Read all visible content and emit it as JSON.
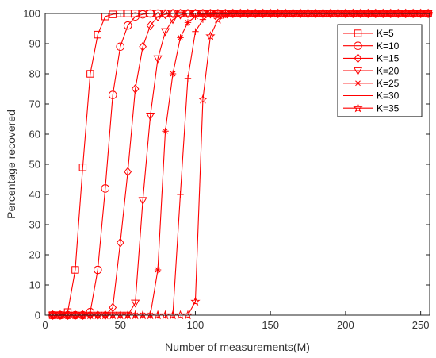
{
  "chart_data": {
    "type": "line",
    "xlabel": "Number of measurements(M)",
    "ylabel": "Percentage recovered",
    "xlim": [
      0,
      256
    ],
    "ylim": [
      0,
      100
    ],
    "xticks": [
      0,
      50,
      100,
      150,
      200,
      250
    ],
    "yticks": [
      0,
      10,
      20,
      30,
      40,
      50,
      60,
      70,
      80,
      90,
      100
    ],
    "grid": false,
    "legend_position": "top-right",
    "line_color": "#ff0000",
    "series": [
      {
        "name": "K=5",
        "marker": "square",
        "x": [
          5,
          10,
          15,
          20,
          25,
          30,
          35,
          40,
          45,
          50,
          55,
          60,
          65,
          70,
          75,
          80,
          85,
          90,
          95,
          100,
          105,
          110,
          115,
          120,
          125,
          130,
          135,
          140,
          145,
          150,
          155,
          160,
          165,
          170,
          175,
          180,
          185,
          190,
          195,
          200,
          205,
          210,
          215,
          220,
          225,
          230,
          235,
          240,
          245,
          250,
          255
        ],
        "y": [
          0,
          0,
          1,
          15,
          49,
          80,
          93,
          99,
          99.7,
          100,
          100,
          100,
          100,
          100,
          100,
          100,
          100,
          100,
          100,
          100,
          100,
          100,
          100,
          100,
          100,
          100,
          100,
          100,
          100,
          100,
          100,
          100,
          100,
          100,
          100,
          100,
          100,
          100,
          100,
          100,
          100,
          100,
          100,
          100,
          100,
          100,
          100,
          100,
          100,
          100,
          100
        ]
      },
      {
        "name": "K=10",
        "marker": "circle",
        "x": [
          5,
          10,
          15,
          20,
          25,
          30,
          35,
          40,
          45,
          50,
          55,
          60,
          65,
          70,
          75,
          80,
          85,
          90,
          95,
          100,
          105,
          110,
          115,
          120,
          125,
          130,
          135,
          140,
          145,
          150,
          155,
          160,
          165,
          170,
          175,
          180,
          185,
          190,
          195,
          200,
          205,
          210,
          215,
          220,
          225,
          230,
          235,
          240,
          245,
          250,
          255
        ],
        "y": [
          0,
          0,
          0,
          0,
          0,
          1,
          15,
          42,
          73,
          89,
          96,
          99,
          99.7,
          100,
          100,
          100,
          100,
          100,
          100,
          100,
          100,
          100,
          100,
          100,
          100,
          100,
          100,
          100,
          100,
          100,
          100,
          100,
          100,
          100,
          100,
          100,
          100,
          100,
          100,
          100,
          100,
          100,
          100,
          100,
          100,
          100,
          100,
          100,
          100,
          100,
          100
        ]
      },
      {
        "name": "K=15",
        "marker": "diamond",
        "x": [
          5,
          10,
          15,
          20,
          25,
          30,
          35,
          40,
          45,
          50,
          55,
          60,
          65,
          70,
          75,
          80,
          85,
          90,
          95,
          100,
          105,
          110,
          115,
          120,
          125,
          130,
          135,
          140,
          145,
          150,
          155,
          160,
          165,
          170,
          175,
          180,
          185,
          190,
          195,
          200,
          205,
          210,
          215,
          220,
          225,
          230,
          235,
          240,
          245,
          250,
          255
        ],
        "y": [
          0,
          0,
          0,
          0,
          0,
          0,
          0,
          0,
          2.5,
          24,
          47.5,
          75,
          89,
          96,
          99,
          99.7,
          100,
          100,
          100,
          100,
          100,
          100,
          100,
          100,
          100,
          100,
          100,
          100,
          100,
          100,
          100,
          100,
          100,
          100,
          100,
          100,
          100,
          100,
          100,
          100,
          100,
          100,
          100,
          100,
          100,
          100,
          100,
          100,
          100,
          100,
          100
        ]
      },
      {
        "name": "K=20",
        "marker": "triangle-down",
        "x": [
          5,
          10,
          15,
          20,
          25,
          30,
          35,
          40,
          45,
          50,
          55,
          60,
          65,
          70,
          75,
          80,
          85,
          90,
          95,
          100,
          105,
          110,
          115,
          120,
          125,
          130,
          135,
          140,
          145,
          150,
          155,
          160,
          165,
          170,
          175,
          180,
          185,
          190,
          195,
          200,
          205,
          210,
          215,
          220,
          225,
          230,
          235,
          240,
          245,
          250,
          255
        ],
        "y": [
          0,
          0,
          0,
          0,
          0,
          0,
          0,
          0,
          0,
          0,
          0,
          4,
          38,
          66,
          85,
          94,
          98,
          99.5,
          100,
          100,
          100,
          100,
          100,
          100,
          100,
          100,
          100,
          100,
          100,
          100,
          100,
          100,
          100,
          100,
          100,
          100,
          100,
          100,
          100,
          100,
          100,
          100,
          100,
          100,
          100,
          100,
          100,
          100,
          100,
          100,
          100
        ]
      },
      {
        "name": "K=25",
        "marker": "asterisk",
        "x": [
          5,
          10,
          15,
          20,
          25,
          30,
          35,
          40,
          45,
          50,
          55,
          60,
          65,
          70,
          75,
          80,
          85,
          90,
          95,
          100,
          105,
          110,
          115,
          120,
          125,
          130,
          135,
          140,
          145,
          150,
          155,
          160,
          165,
          170,
          175,
          180,
          185,
          190,
          195,
          200,
          205,
          210,
          215,
          220,
          225,
          230,
          235,
          240,
          245,
          250,
          255
        ],
        "y": [
          0,
          0,
          0,
          0,
          0,
          0,
          0,
          0,
          0,
          0,
          0,
          0,
          0,
          0,
          15,
          61,
          80,
          92,
          97,
          99,
          99.7,
          100,
          100,
          100,
          100,
          100,
          100,
          100,
          100,
          100,
          100,
          100,
          100,
          100,
          100,
          100,
          100,
          100,
          100,
          100,
          100,
          100,
          100,
          100,
          100,
          100,
          100,
          100,
          100,
          100,
          100
        ]
      },
      {
        "name": "K=30",
        "marker": "plus",
        "x": [
          5,
          10,
          15,
          20,
          25,
          30,
          35,
          40,
          45,
          50,
          55,
          60,
          65,
          70,
          75,
          80,
          85,
          90,
          95,
          100,
          105,
          110,
          115,
          120,
          125,
          130,
          135,
          140,
          145,
          150,
          155,
          160,
          165,
          170,
          175,
          180,
          185,
          190,
          195,
          200,
          205,
          210,
          215,
          220,
          225,
          230,
          235,
          240,
          245,
          250,
          255
        ],
        "y": [
          0,
          0,
          0,
          0,
          0,
          0,
          0,
          0,
          0,
          0,
          0,
          0,
          0,
          0,
          0,
          0,
          0,
          40,
          78.5,
          94,
          98,
          99.5,
          100,
          100,
          100,
          100,
          100,
          100,
          100,
          100,
          100,
          100,
          100,
          100,
          100,
          100,
          100,
          100,
          100,
          100,
          100,
          100,
          100,
          100,
          100,
          100,
          100,
          100,
          100,
          100,
          100
        ]
      },
      {
        "name": "K=35",
        "marker": "star",
        "x": [
          5,
          10,
          15,
          20,
          25,
          30,
          35,
          40,
          45,
          50,
          55,
          60,
          65,
          70,
          75,
          80,
          85,
          90,
          95,
          100,
          105,
          110,
          115,
          120,
          125,
          130,
          135,
          140,
          145,
          150,
          155,
          160,
          165,
          170,
          175,
          180,
          185,
          190,
          195,
          200,
          205,
          210,
          215,
          220,
          225,
          230,
          235,
          240,
          245,
          250,
          255
        ],
        "y": [
          0,
          0,
          0,
          0,
          0,
          0,
          0,
          0,
          0,
          0,
          0,
          0,
          0,
          0,
          0,
          0,
          0,
          0,
          0,
          4.5,
          71.5,
          92.5,
          98,
          99.5,
          100,
          100,
          100,
          100,
          100,
          100,
          100,
          100,
          100,
          100,
          100,
          100,
          100,
          100,
          100,
          100,
          100,
          100,
          100,
          100,
          100,
          100,
          100,
          100,
          100,
          100,
          100
        ]
      }
    ]
  }
}
